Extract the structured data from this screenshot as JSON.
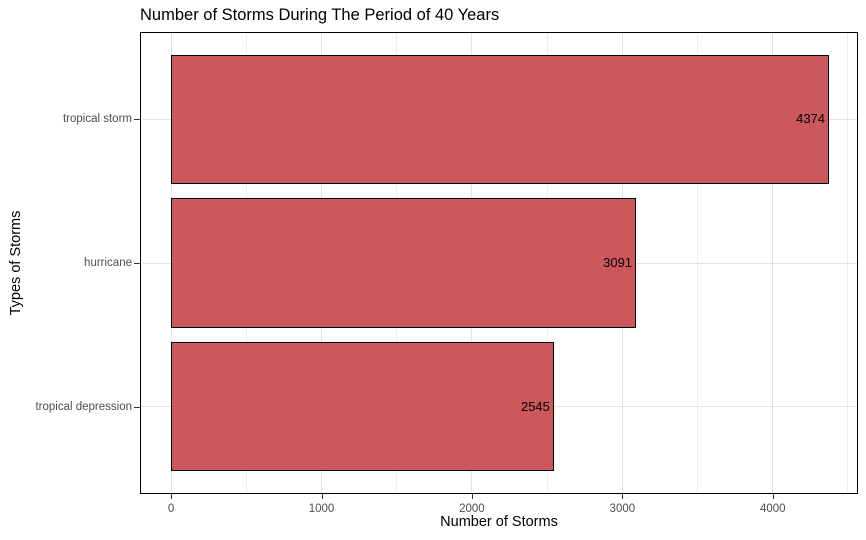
{
  "chart_data": {
    "type": "bar",
    "orientation": "horizontal",
    "title": "Number of Storms During The Period of 40 Years",
    "xlabel": "Number of Storms",
    "ylabel": "Types of Storms",
    "categories": [
      "tropical storm",
      "hurricane",
      "tropical depression"
    ],
    "values": [
      4374,
      3091,
      2545
    ],
    "x_ticks": [
      0,
      1000,
      2000,
      3000,
      4000
    ],
    "x_minor_ticks": [
      500,
      1500,
      2500,
      3500,
      4500
    ],
    "xlim": [
      -200,
      4560
    ],
    "grid": true,
    "legend_position": "none",
    "band_padding": 0.6,
    "bar_relative_width": 0.9,
    "colors": {
      "bar_fill": "#CC585C",
      "bar_border": "#000000",
      "panel_border": "#000000",
      "panel_background": "#FFFFFF",
      "grid_major": "#E2E2E2",
      "grid_minor": "#EDEDED",
      "tick_mark": "#333333",
      "tick_label": "#4D4D4D",
      "title_text": "#000000",
      "figure_background": "#FFFFFF"
    }
  }
}
